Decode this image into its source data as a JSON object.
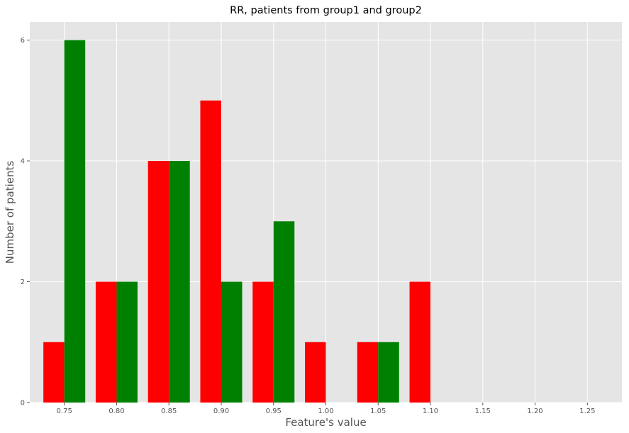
{
  "chart_data": {
    "type": "bar",
    "title": "RR, patients from group1 and group2",
    "xlabel": "Feature's value",
    "ylabel": "Number of patients",
    "categories": [
      "0.75",
      "0.80",
      "0.85",
      "0.90",
      "0.95",
      "1.00",
      "1.05",
      "1.10"
    ],
    "series": [
      {
        "color": "#ff0000",
        "values": [
          1,
          2,
          4,
          5,
          2,
          1,
          1,
          2
        ]
      },
      {
        "color": "#008000",
        "values": [
          6,
          2,
          4,
          2,
          3,
          0,
          1,
          0
        ]
      }
    ],
    "xticks": [
      "0.75",
      "0.80",
      "0.85",
      "0.90",
      "0.95",
      "1.00",
      "1.05",
      "1.10",
      "1.15",
      "1.20",
      "1.25"
    ],
    "yticks": [
      "0",
      "2",
      "4",
      "6"
    ],
    "xlim": [
      0.717,
      1.283
    ],
    "ylim": [
      0,
      6.3
    ],
    "background": "#e5e5e5",
    "grid": true,
    "gridColor": "#ffffff"
  }
}
